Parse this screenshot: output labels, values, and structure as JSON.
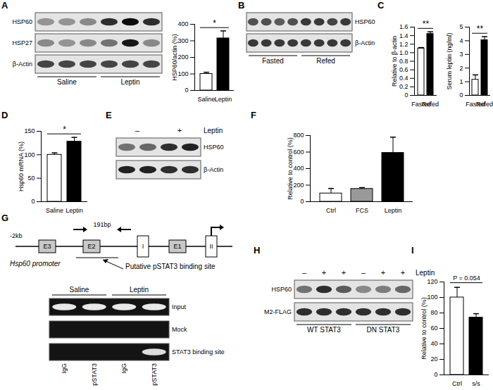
{
  "chart_data": [
    {
      "type": "bar",
      "panel": "A",
      "ylabel": "HSP60/actin (%)",
      "categories": [
        "Saline",
        "Leptin"
      ],
      "values": [
        100,
        315
      ],
      "errors": [
        10,
        45
      ],
      "colors": [
        "#ffffff",
        "#000000"
      ],
      "ylim": [
        0,
        400
      ],
      "yticks": [
        0,
        100,
        200,
        300,
        400
      ],
      "annotation": "*"
    },
    {
      "type": "bar",
      "panel": "C",
      "ylabel": "Relative to β-actin",
      "categories": [
        "Fasted",
        "Refed"
      ],
      "values": [
        1.1,
        1.44
      ],
      "errors": [
        0.02,
        0.05
      ],
      "colors": [
        "#ffffff",
        "#000000"
      ],
      "ylim": [
        0,
        1.6
      ],
      "yticks": [
        0,
        0.2,
        0.4,
        0.6,
        0.8,
        {
          "value": 1,
          "label": "1.0"
        },
        1.2,
        1.4,
        1.6
      ],
      "annotation": "**"
    },
    {
      "type": "bar",
      "panel": "C",
      "ylabel": "Serum leptin (ng/ml)",
      "categories": [
        "Fasted",
        "Refed"
      ],
      "values": [
        1.15,
        4.05
      ],
      "errors": [
        0.35,
        0.25
      ],
      "colors": [
        "#ffffff",
        "#000000"
      ],
      "ylim": [
        0,
        5
      ],
      "yticks": [
        0,
        1,
        2,
        3,
        4,
        5
      ],
      "annotation": "**"
    },
    {
      "type": "bar",
      "panel": "D",
      "ylabel": "Hsp60 mRNA (%)",
      "categories": [
        "Saline",
        "Leptin"
      ],
      "values": [
        100,
        128
      ],
      "errors": [
        4,
        9
      ],
      "colors": [
        "#ffffff",
        "#000000"
      ],
      "ylim": [
        0,
        150
      ],
      "yticks": [
        0,
        50,
        100,
        150
      ],
      "annotation": "*"
    },
    {
      "type": "bar",
      "panel": "F",
      "ylabel": "Relative to control (%)",
      "categories": [
        "Ctrl",
        "FCS",
        "Leptin"
      ],
      "values": [
        100,
        155,
        590
      ],
      "errors": [
        60,
        15,
        190
      ],
      "colors": [
        "#ffffff",
        "#999999",
        "#000000"
      ],
      "ylim": [
        0,
        800
      ],
      "yticks": [
        0,
        200,
        400,
        600,
        800
      ]
    },
    {
      "type": "bar",
      "panel": "I",
      "ylabel": "Relative to control (%)",
      "categories": [
        "Ctrl",
        "s/s"
      ],
      "values": [
        100,
        74
      ],
      "errors": [
        13,
        5
      ],
      "colors": [
        "#ffffff",
        "#000000"
      ],
      "ylim": [
        0,
        120
      ],
      "yticks": [
        0,
        20,
        40,
        60,
        80,
        100,
        120
      ],
      "annotation": "P = 0.054"
    }
  ],
  "blots": [
    {
      "panel": "A",
      "label_side": "left",
      "rows": [
        {
          "label": "HSP60",
          "bands": [
            0.35,
            0.35,
            0.4,
            0.8,
            0.95,
            0.8
          ]
        },
        {
          "label": "HSP27",
          "bands": [
            0.4,
            0.35,
            0.4,
            0.5,
            0.9,
            0.4
          ]
        },
        {
          "label": "β-Actin",
          "bands": [
            0.7,
            0.7,
            0.7,
            0.7,
            0.7,
            0.7
          ]
        }
      ],
      "groups_below": [
        {
          "label": "Saline",
          "lanes": 3
        },
        {
          "label": "Leptin",
          "lanes": 3
        }
      ]
    },
    {
      "panel": "B",
      "label_side": "right",
      "rows": [
        {
          "label": "HSP60",
          "bands": [
            0.65,
            0.65,
            0.6,
            0.65,
            0.75,
            0.75,
            0.7,
            0.75
          ]
        },
        {
          "label": "β-Actin",
          "bands": [
            0.75,
            0.75,
            0.75,
            0.75,
            0.75,
            0.75,
            0.75,
            0.75
          ]
        }
      ],
      "groups_below": [
        {
          "label": "Fasted",
          "lanes": 4
        },
        {
          "label": "Refed",
          "lanes": 4
        }
      ]
    },
    {
      "panel": "E",
      "label_side": "right",
      "header": "Leptin",
      "rows": [
        {
          "label": "HSP60",
          "bands": [
            0.5,
            0.55,
            0.8,
            0.85
          ]
        },
        {
          "label": "β-Actin",
          "bands": [
            0.85,
            0.85,
            0.8,
            0.8
          ]
        }
      ],
      "groups_above": [
        {
          "label": "–",
          "lanes": 2
        },
        {
          "label": "+",
          "lanes": 2
        }
      ]
    },
    {
      "panel": "H",
      "label_side": "left",
      "header": "Leptin",
      "lane_marks": [
        "–",
        "+",
        "+",
        "–",
        "+",
        "+"
      ],
      "rows": [
        {
          "label": "HSP60",
          "bands": [
            0.5,
            0.8,
            0.6,
            0.4,
            0.45,
            0.55
          ]
        },
        {
          "label": "M2-FLAG",
          "bands": [
            0.8,
            0.8,
            0.8,
            0.8,
            0.8,
            0.8
          ]
        }
      ],
      "groups_below": [
        {
          "label": "WT STAT3",
          "lanes": 3
        },
        {
          "label": "DN STAT3",
          "lanes": 3
        }
      ]
    }
  ],
  "promoter": {
    "panel": "G",
    "start_label": "-2kb",
    "boxes": [
      {
        "label": "E3",
        "kind": "element"
      },
      {
        "label": "E2",
        "kind": "element"
      },
      {
        "label": "I",
        "kind": "exon"
      },
      {
        "label": "E1",
        "kind": "element"
      },
      {
        "label": "II",
        "kind": "exon"
      }
    ],
    "amplicon": "191bp",
    "name": "Hsp60 promoter",
    "site": "Putative pSTAT3 binding site"
  },
  "gel": {
    "panel": "G",
    "groups_above": [
      {
        "label": "Saline",
        "lanes": 2
      },
      {
        "label": "Leptin",
        "lanes": 2
      }
    ],
    "rows": [
      {
        "label": "Input",
        "bands": [
          0.9,
          0.9,
          0.9,
          0.9
        ]
      },
      {
        "label": "Mock",
        "bands": [
          0,
          0,
          0,
          0
        ]
      },
      {
        "label": "STAT3 binding site",
        "bands": [
          0,
          0,
          0,
          0.85
        ]
      }
    ],
    "lane_labels": [
      "IgG",
      "pSTAT3",
      "IgG",
      "pSTAT3"
    ]
  }
}
